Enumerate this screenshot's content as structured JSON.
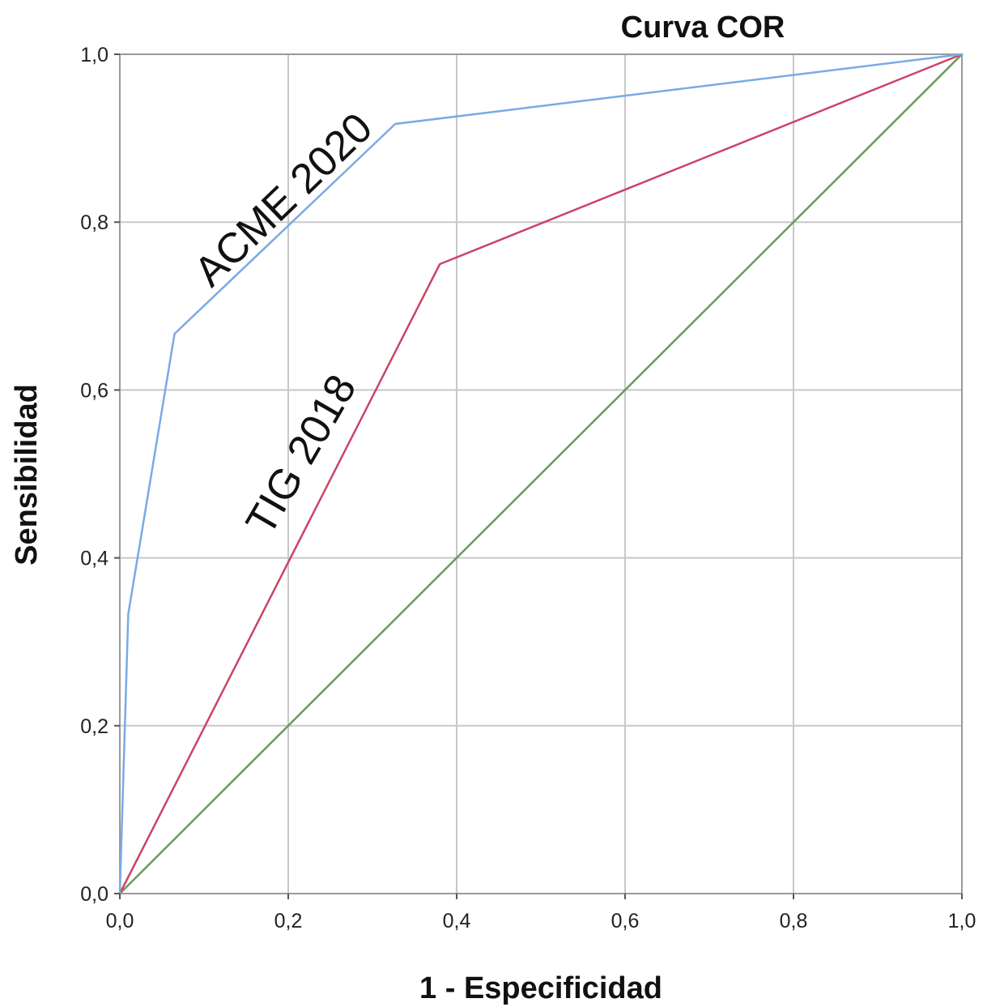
{
  "chart_data": {
    "type": "line",
    "title": "Curva COR",
    "xlabel": "1 - Especificidad",
    "ylabel": "Sensibilidad",
    "xlim": [
      0,
      1
    ],
    "ylim": [
      0,
      1
    ],
    "grid": true,
    "x_ticks": [
      "0,0",
      "0,2",
      "0,4",
      "0,6",
      "0,8",
      "1,0"
    ],
    "y_ticks": [
      "0,0",
      "0,2",
      "0,4",
      "0,6",
      "0,8",
      "1,0"
    ],
    "series": [
      {
        "name": "ACME 2020",
        "color": "#7aaae6",
        "points": [
          {
            "x": 0.0,
            "y": 0.0
          },
          {
            "x": 0.01,
            "y": 0.333
          },
          {
            "x": 0.065,
            "y": 0.667
          },
          {
            "x": 0.327,
            "y": 0.917
          },
          {
            "x": 1.0,
            "y": 1.0
          }
        ]
      },
      {
        "name": "TIG 2018",
        "color": "#cc4466",
        "points": [
          {
            "x": 0.0,
            "y": 0.0
          },
          {
            "x": 0.38,
            "y": 0.75
          },
          {
            "x": 1.0,
            "y": 1.0
          }
        ]
      },
      {
        "color": "#6a9a5a",
        "points": [
          {
            "x": 0.0,
            "y": 0.0
          },
          {
            "x": 1.0,
            "y": 1.0
          }
        ]
      }
    ]
  }
}
